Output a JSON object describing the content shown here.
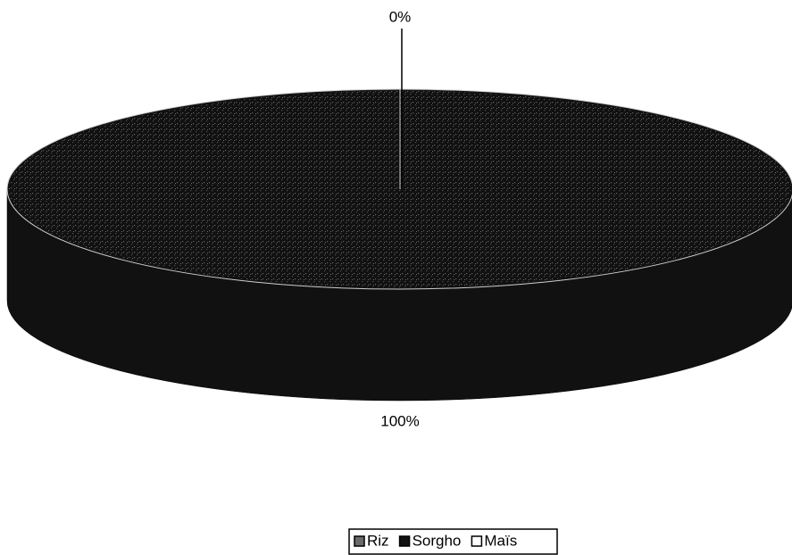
{
  "chart_data": {
    "type": "pie",
    "categories": [
      "Riz",
      "Sorgho",
      "Maïs"
    ],
    "values": [
      0,
      100,
      0
    ],
    "value_labels": [
      "0%",
      "100%",
      null
    ],
    "colors": [
      "#6a6a6a",
      "#111111",
      "#ffffff"
    ],
    "legend": "bottom"
  }
}
